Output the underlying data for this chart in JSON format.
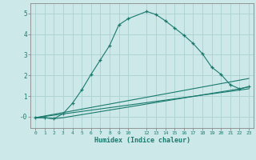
{
  "xlabel": "Humidex (Indice chaleur)",
  "bg_color": "#cce8e8",
  "grid_color": "#afd4d4",
  "line_color": "#1a7a6e",
  "xlim": [
    -0.5,
    23.5
  ],
  "ylim": [
    -0.55,
    5.5
  ],
  "yticks": [
    0,
    1,
    2,
    3,
    4,
    5
  ],
  "ytick_labels": [
    "-0",
    "1",
    "2",
    "3",
    "4",
    "5"
  ],
  "xticks": [
    0,
    1,
    2,
    3,
    4,
    5,
    6,
    7,
    8,
    9,
    10,
    12,
    13,
    14,
    15,
    16,
    17,
    18,
    19,
    20,
    21,
    22,
    23
  ],
  "line1_x": [
    0,
    1,
    2,
    3,
    4,
    5,
    6,
    7,
    8,
    9,
    10,
    12,
    13,
    14,
    15,
    16,
    17,
    18,
    19,
    20,
    21,
    22,
    23
  ],
  "line1_y": [
    -0.05,
    -0.05,
    -0.1,
    0.15,
    0.65,
    1.3,
    2.05,
    2.75,
    3.45,
    4.45,
    4.75,
    5.1,
    4.95,
    4.65,
    4.3,
    3.95,
    3.55,
    3.05,
    2.4,
    2.05,
    1.55,
    1.35,
    1.45
  ],
  "line2_x": [
    0,
    1,
    2,
    3,
    22,
    23
  ],
  "line2_y": [
    -0.05,
    -0.05,
    -0.1,
    -0.05,
    1.35,
    1.45
  ],
  "line3_x": [
    0,
    23
  ],
  "line3_y": [
    -0.05,
    1.85
  ],
  "line4_x": [
    0,
    23
  ],
  "line4_y": [
    -0.05,
    1.35
  ]
}
